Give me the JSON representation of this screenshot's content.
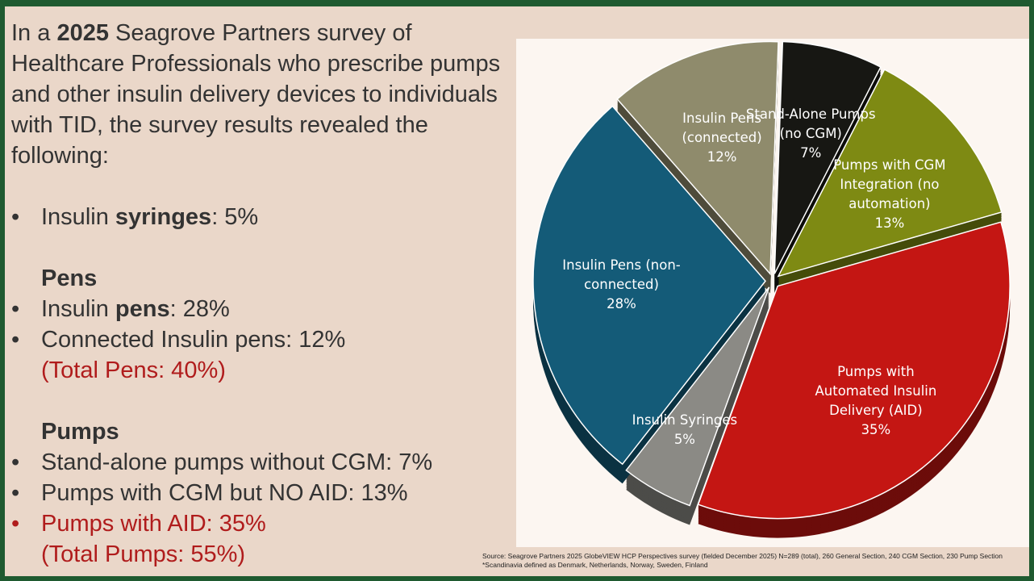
{
  "slide": {
    "intro": {
      "before": "In a ",
      "bold": "2025",
      "after": " Seagrove Partners survey of Healthcare Professionals who prescribe pumps and other insulin delivery devices to individuals with TID, the survey results revealed the following:"
    },
    "items": [
      {
        "bullet": true,
        "before": "Insulin ",
        "bold": "syringes",
        "after": ": 5%"
      },
      {
        "heading": "Pens"
      },
      {
        "bullet": true,
        "before": "Insulin ",
        "bold": "pens",
        "after": ": 28%"
      },
      {
        "bullet": true,
        "before": "Connected Insulin pens: 12%"
      },
      {
        "bullet": false,
        "red": true,
        "before": "(Total Pens: 40%)"
      },
      {
        "heading": "Pumps"
      },
      {
        "bullet": true,
        "before": "Stand-alone pumps without CGM: 7%"
      },
      {
        "bullet": true,
        "before": "Pumps with CGM but NO AID: 13%"
      },
      {
        "bullet": true,
        "red": true,
        "before": "Pumps with AID: 35%"
      },
      {
        "bullet": false,
        "red": true,
        "before": "(Total Pumps: 55%)"
      }
    ],
    "source": "Source: Seagrove Partners 2025 GlobeVIEW HCP Perspectives survey (fielded December 2025) N=289 (total), 260 General Section, 240 CGM Section, 230 Pump Section *Scandinavia defined as Denmark, Netherlands, Norway, Sweden, Finland"
  },
  "chart_data": {
    "type": "pie",
    "categories": [
      "Stand-Alone Pumps (no CGM)",
      "Pumps with CGM Integration (no automation)",
      "Pumps with Automated Insulin Delivery (AID)",
      "Insulin Syringes",
      "Insulin Pens (non-connected)",
      "Insulin Pens (connected)"
    ],
    "values": [
      7,
      13,
      35,
      5,
      28,
      12
    ],
    "value_labels": [
      "7%",
      "13%",
      "35%",
      "5%",
      "28%",
      "12%"
    ],
    "colors": [
      "#171713",
      "#7e8a13",
      "#c41613",
      "#8b8a85",
      "#145b78",
      "#8f8b6c"
    ]
  }
}
